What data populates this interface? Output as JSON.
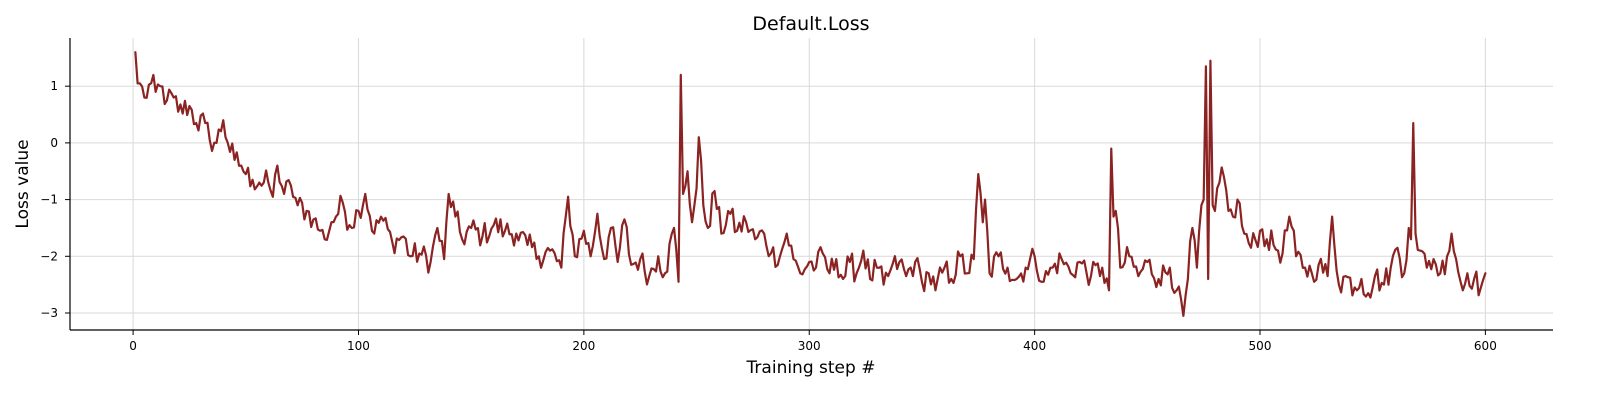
{
  "chart_data": {
    "type": "line",
    "title": "Default.Loss",
    "xlabel": "Training step #",
    "ylabel": "Loss value",
    "xlim": [
      -28,
      630
    ],
    "ylim": [
      -3.3,
      1.85
    ],
    "x_ticks": [
      0,
      100,
      200,
      300,
      400,
      500,
      600
    ],
    "x_tick_labels": [
      "0",
      "100",
      "200",
      "300",
      "400",
      "500",
      "600"
    ],
    "y_ticks": [
      1,
      0,
      -1,
      -2,
      -3
    ],
    "y_tick_labels": [
      "1",
      "0",
      "−1",
      "−2",
      "−3"
    ],
    "grid": true,
    "line_color": "#8B2323",
    "anchors": [
      [
        1,
        1.6
      ],
      [
        2,
        1.05
      ],
      [
        3,
        1.05
      ],
      [
        5,
        0.8
      ],
      [
        8,
        1.05
      ],
      [
        10,
        0.9
      ],
      [
        12,
        1.0
      ],
      [
        15,
        0.75
      ],
      [
        18,
        0.8
      ],
      [
        20,
        0.55
      ],
      [
        25,
        0.65
      ],
      [
        28,
        0.35
      ],
      [
        32,
        0.35
      ],
      [
        34,
        0.05
      ],
      [
        37,
        0.0
      ],
      [
        40,
        0.4
      ],
      [
        42,
        0.0
      ],
      [
        45,
        -0.3
      ],
      [
        48,
        -0.4
      ],
      [
        50,
        -0.55
      ],
      [
        53,
        -0.65
      ],
      [
        56,
        -0.7
      ],
      [
        60,
        -0.7
      ],
      [
        62,
        -0.95
      ],
      [
        64,
        -0.4
      ],
      [
        67,
        -0.9
      ],
      [
        70,
        -0.75
      ],
      [
        73,
        -1.1
      ],
      [
        77,
        -1.2
      ],
      [
        80,
        -1.35
      ],
      [
        83,
        -1.55
      ],
      [
        85,
        -1.7
      ],
      [
        88,
        -1.4
      ],
      [
        90,
        -1.3
      ],
      [
        93,
        -1.05
      ],
      [
        96,
        -1.45
      ],
      [
        100,
        -1.2
      ],
      [
        103,
        -0.9
      ],
      [
        107,
        -1.6
      ],
      [
        110,
        -1.3
      ],
      [
        115,
        -1.75
      ],
      [
        120,
        -1.65
      ],
      [
        123,
        -2.0
      ],
      [
        127,
        -1.95
      ],
      [
        132,
        -2.1
      ],
      [
        135,
        -1.5
      ],
      [
        138,
        -2.05
      ],
      [
        140,
        -0.9
      ],
      [
        143,
        -1.3
      ],
      [
        146,
        -1.7
      ],
      [
        150,
        -1.5
      ],
      [
        155,
        -1.65
      ],
      [
        160,
        -1.45
      ],
      [
        165,
        -1.55
      ],
      [
        170,
        -1.6
      ],
      [
        175,
        -1.8
      ],
      [
        180,
        -2.0
      ],
      [
        185,
        -1.9
      ],
      [
        190,
        -2.2
      ],
      [
        193,
        -0.95
      ],
      [
        196,
        -2.0
      ],
      [
        200,
        -1.55
      ],
      [
        203,
        -2.0
      ],
      [
        206,
        -1.25
      ],
      [
        209,
        -2.05
      ],
      [
        212,
        -1.5
      ],
      [
        215,
        -2.1
      ],
      [
        218,
        -1.35
      ],
      [
        221,
        -2.15
      ],
      [
        225,
        -2.05
      ],
      [
        229,
        -2.35
      ],
      [
        233,
        -2.0
      ],
      [
        236,
        -2.3
      ],
      [
        240,
        -1.5
      ],
      [
        242,
        -2.45
      ],
      [
        243,
        1.2
      ],
      [
        244,
        -0.9
      ],
      [
        246,
        -0.5
      ],
      [
        248,
        -1.4
      ],
      [
        250,
        -0.8
      ],
      [
        251,
        0.1
      ],
      [
        253,
        -1.1
      ],
      [
        255,
        -1.5
      ],
      [
        258,
        -0.85
      ],
      [
        261,
        -1.6
      ],
      [
        264,
        -1.2
      ],
      [
        268,
        -1.55
      ],
      [
        272,
        -1.4
      ],
      [
        276,
        -1.7
      ],
      [
        280,
        -1.6
      ],
      [
        283,
        -1.95
      ],
      [
        287,
        -2.0
      ],
      [
        290,
        -1.6
      ],
      [
        293,
        -2.05
      ],
      [
        296,
        -2.3
      ],
      [
        300,
        -2.1
      ],
      [
        303,
        -2.2
      ],
      [
        306,
        -1.95
      ],
      [
        309,
        -2.3
      ],
      [
        312,
        -2.05
      ],
      [
        315,
        -2.4
      ],
      [
        318,
        -2.1
      ],
      [
        321,
        -2.3
      ],
      [
        324,
        -1.9
      ],
      [
        327,
        -2.4
      ],
      [
        330,
        -2.2
      ],
      [
        333,
        -2.5
      ],
      [
        336,
        -2.25
      ],
      [
        340,
        -2.1
      ],
      [
        343,
        -2.35
      ],
      [
        347,
        -2.1
      ],
      [
        350,
        -2.45
      ],
      [
        353,
        -2.3
      ],
      [
        356,
        -2.6
      ],
      [
        360,
        -2.2
      ],
      [
        363,
        -2.4
      ],
      [
        367,
        -2.0
      ],
      [
        370,
        -2.3
      ],
      [
        373,
        -2.05
      ],
      [
        375,
        -0.55
      ],
      [
        377,
        -1.4
      ],
      [
        378,
        -1.0
      ],
      [
        380,
        -2.3
      ],
      [
        384,
        -2.0
      ],
      [
        388,
        -2.2
      ],
      [
        392,
        -2.4
      ],
      [
        396,
        -2.2
      ],
      [
        400,
        -2.0
      ],
      [
        404,
        -2.45
      ],
      [
        408,
        -2.2
      ],
      [
        412,
        -2.05
      ],
      [
        416,
        -2.3
      ],
      [
        420,
        -2.1
      ],
      [
        425,
        -2.35
      ],
      [
        430,
        -2.2
      ],
      [
        433,
        -2.6
      ],
      [
        434,
        -0.1
      ],
      [
        435,
        -1.3
      ],
      [
        436,
        -1.2
      ],
      [
        438,
        -2.2
      ],
      [
        442,
        -2.0
      ],
      [
        446,
        -2.35
      ],
      [
        450,
        -2.1
      ],
      [
        455,
        -2.4
      ],
      [
        460,
        -2.2
      ],
      [
        463,
        -2.6
      ],
      [
        466,
        -3.05
      ],
      [
        468,
        -2.4
      ],
      [
        470,
        -1.5
      ],
      [
        472,
        -2.2
      ],
      [
        474,
        -1.1
      ],
      [
        475,
        -1.0
      ],
      [
        476,
        1.35
      ],
      [
        477,
        -2.4
      ],
      [
        478,
        1.45
      ],
      [
        479,
        -1.1
      ],
      [
        480,
        -1.2
      ],
      [
        482,
        -0.7
      ],
      [
        484,
        -0.6
      ],
      [
        486,
        -1.2
      ],
      [
        488,
        -1.3
      ],
      [
        490,
        -1.0
      ],
      [
        493,
        -1.6
      ],
      [
        496,
        -1.85
      ],
      [
        500,
        -1.55
      ],
      [
        503,
        -1.7
      ],
      [
        506,
        -1.8
      ],
      [
        510,
        -1.95
      ],
      [
        513,
        -1.3
      ],
      [
        516,
        -2.0
      ],
      [
        520,
        -2.2
      ],
      [
        523,
        -2.3
      ],
      [
        526,
        -2.15
      ],
      [
        530,
        -2.35
      ],
      [
        532,
        -1.3
      ],
      [
        535,
        -2.5
      ],
      [
        538,
        -2.35
      ],
      [
        542,
        -2.55
      ],
      [
        545,
        -2.4
      ],
      [
        548,
        -2.65
      ],
      [
        551,
        -2.35
      ],
      [
        555,
        -2.5
      ],
      [
        558,
        -2.2
      ],
      [
        561,
        -1.85
      ],
      [
        564,
        -2.3
      ],
      [
        566,
        -1.5
      ],
      [
        567,
        -1.7
      ],
      [
        568,
        0.35
      ],
      [
        569,
        -1.6
      ],
      [
        571,
        -1.9
      ],
      [
        574,
        -2.2
      ],
      [
        577,
        -2.05
      ],
      [
        580,
        -2.3
      ],
      [
        583,
        -2.0
      ],
      [
        585,
        -1.6
      ],
      [
        587,
        -2.05
      ],
      [
        590,
        -2.6
      ],
      [
        592,
        -2.3
      ],
      [
        595,
        -2.4
      ],
      [
        598,
        -2.55
      ],
      [
        600,
        -2.3
      ]
    ]
  }
}
